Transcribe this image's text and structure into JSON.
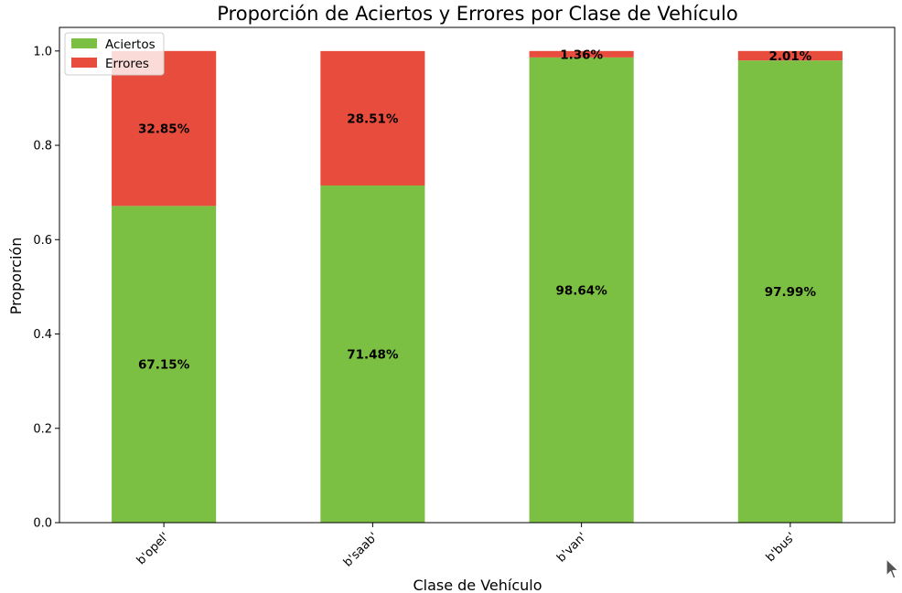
{
  "chart_data": {
    "type": "bar",
    "stacked": true,
    "title": "Proporción de Aciertos y Errores por Clase de Vehículo",
    "xlabel": "Clase de Vehículo",
    "ylabel": "Proporción",
    "categories": [
      "b'opel'",
      "b'saab'",
      "b'van'",
      "b'bus'"
    ],
    "ylim": [
      0,
      1.05
    ],
    "yticks": [
      "0.0",
      "0.2",
      "0.4",
      "0.6",
      "0.8",
      "1.0"
    ],
    "grid": false,
    "legend_position": "top-left",
    "series": [
      {
        "name": "Aciertos",
        "color": "#7bc043",
        "values": [
          0.6715,
          0.7148,
          0.9864,
          0.9799
        ],
        "labels": [
          "67.15%",
          "71.48%",
          "98.64%",
          "97.99%"
        ]
      },
      {
        "name": "Errores",
        "color": "#e84c3d",
        "values": [
          0.3285,
          0.2851,
          0.0136,
          0.0201
        ],
        "labels": [
          "32.85%",
          "28.51%",
          "1.36%",
          "2.01%"
        ]
      }
    ]
  },
  "cursor_icon": "mouse-pointer-icon"
}
